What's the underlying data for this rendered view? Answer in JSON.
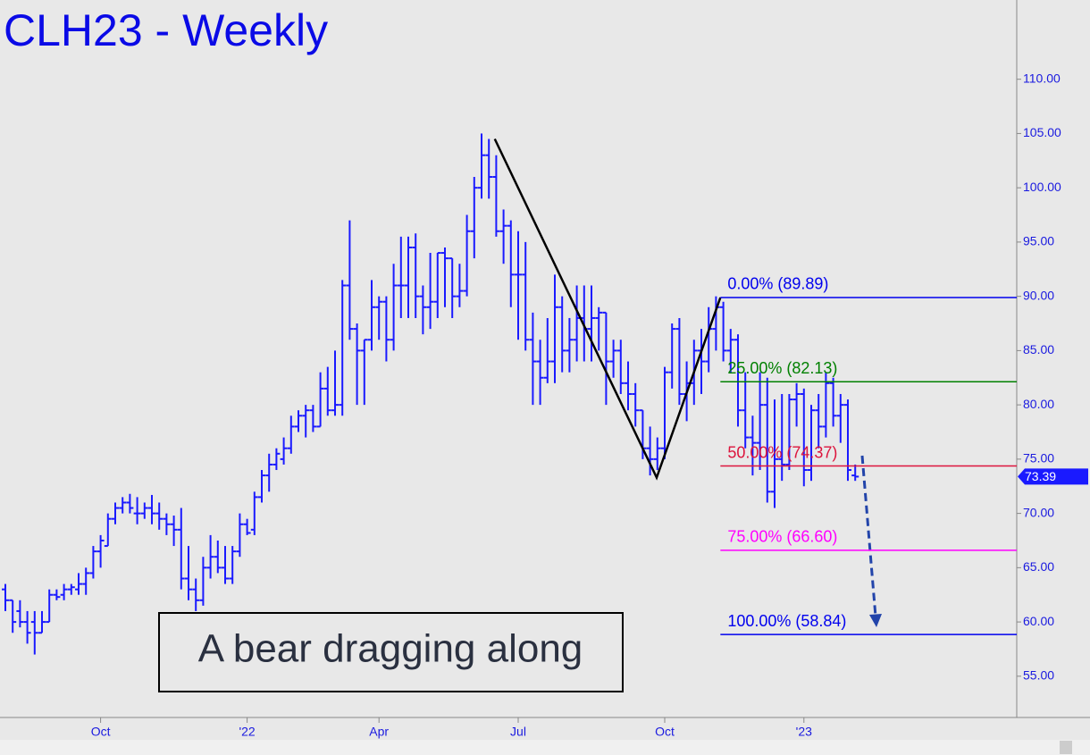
{
  "chart_data": {
    "type": "ohlc",
    "title": "CLH23 - Weekly",
    "annotation": "A bear dragging along",
    "color": "#1a1aff",
    "categories": [
      null,
      null,
      null,
      null,
      null,
      null,
      null,
      null,
      null,
      null,
      null,
      null,
      null,
      "Oct",
      null,
      null,
      null,
      null,
      null,
      null,
      null,
      null,
      null,
      null,
      null,
      null,
      null,
      null,
      null,
      null,
      null,
      null,
      null,
      "'22",
      null,
      null,
      null,
      null,
      null,
      null,
      null,
      null,
      null,
      null,
      null,
      null,
      null,
      null,
      null,
      null,
      null,
      "Apr",
      null,
      null,
      null,
      null,
      null,
      null,
      null,
      null,
      null,
      null,
      null,
      null,
      null,
      null,
      null,
      null,
      null,
      null,
      "Jul",
      null,
      null,
      null,
      null,
      null,
      null,
      null,
      null,
      null,
      null,
      null,
      null,
      null,
      null,
      null,
      null,
      null,
      null,
      null,
      "Oct",
      null,
      null,
      null,
      null,
      null,
      null,
      null,
      null,
      null,
      null,
      null,
      null,
      null,
      null,
      null,
      null,
      null,
      null,
      "'23",
      null,
      null,
      null,
      null,
      null,
      null,
      null
    ],
    "open": [
      63,
      62,
      61,
      60,
      60,
      59,
      60,
      62.5,
      62.5,
      63,
      63,
      63.5,
      64.5,
      66.5,
      67,
      69.5,
      70.5,
      71,
      70,
      70,
      70.5,
      70,
      69.5,
      69,
      68.5,
      64,
      63,
      62,
      65,
      66,
      65,
      64,
      66.5,
      69,
      68.5,
      71.5,
      73.5,
      74.5,
      75,
      76,
      78,
      79,
      79.5,
      78,
      81.5,
      79.5,
      80,
      91,
      87,
      85,
      86,
      89,
      89.5,
      86,
      91,
      91,
      94.5,
      90,
      89,
      89.5,
      94,
      93.5,
      90,
      90.5,
      96,
      100,
      103,
      101,
      96,
      96.5,
      92,
      92,
      86,
      84,
      82.5,
      84,
      89,
      85,
      86,
      88,
      87,
      88,
      88.5,
      84,
      85,
      82,
      81,
      79.5,
      76,
      75,
      76,
      83,
      87,
      81,
      82,
      85,
      84,
      87,
      89,
      85,
      86,
      79.5,
      77,
      76.5,
      80,
      72,
      75,
      74.5,
      80.5,
      81,
      74,
      79.5,
      78,
      82,
      79,
      80,
      73.5
    ],
    "high": [
      63.5,
      62,
      62,
      61,
      61,
      61,
      63,
      63,
      63.5,
      63.5,
      64.5,
      65,
      67,
      68,
      70,
      71,
      71.5,
      71.8,
      71.5,
      71,
      71.7,
      71,
      70,
      69.8,
      70.5,
      67,
      64,
      66,
      68,
      67.5,
      67,
      67,
      70,
      69.5,
      72,
      74,
      75.5,
      76,
      77,
      79,
      79.5,
      80,
      80,
      83,
      83.5,
      85,
      91.5,
      97,
      87.5,
      86,
      91.5,
      90,
      90,
      93,
      95.5,
      95.5,
      95.8,
      91,
      94,
      94,
      94.5,
      93.5,
      93,
      97.5,
      101,
      105,
      104.5,
      103,
      98,
      97,
      96,
      95,
      88.5,
      86,
      88,
      92,
      90,
      88,
      91,
      91,
      91,
      89,
      88.5,
      86,
      86,
      84,
      82,
      79.5,
      78,
      77,
      83.5,
      87.5,
      88,
      84,
      86,
      87,
      89,
      90,
      89.5,
      87,
      86.5,
      83,
      79,
      83,
      82.5,
      80.5,
      81,
      81,
      82,
      81.5,
      80,
      81,
      83,
      82.5,
      81,
      80.5,
      74.5
    ],
    "low": [
      61,
      59,
      59.5,
      58,
      57,
      59,
      60,
      62,
      62,
      62.5,
      62.5,
      62.5,
      64,
      65,
      67,
      69,
      70,
      70,
      69,
      69.5,
      69,
      68.5,
      68,
      67,
      63,
      62,
      61,
      61.5,
      64,
      64.5,
      63.5,
      63.5,
      66,
      68,
      68,
      71,
      72,
      74,
      74.5,
      75.5,
      77.5,
      77,
      77.5,
      78,
      79,
      79,
      79,
      86,
      80,
      80,
      85,
      86,
      84,
      85,
      88,
      88,
      88,
      86.5,
      87,
      88,
      89,
      88,
      89,
      90,
      93.5,
      99,
      99,
      95.5,
      93,
      89,
      86,
      85,
      80,
      80,
      82,
      82,
      83,
      83,
      84,
      84,
      84,
      85,
      80,
      82.5,
      81,
      79.5,
      78,
      75,
      73.5,
      74,
      75,
      81.5,
      80,
      78.5,
      80,
      81,
      83,
      85,
      84,
      83,
      78,
      76,
      73.5,
      74,
      71,
      70.5,
      73,
      74,
      78,
      72.5,
      73,
      76,
      77,
      78,
      76.5,
      73,
      73
    ],
    "close": [
      62,
      60,
      60,
      59,
      59,
      60,
      62.5,
      62.3,
      63,
      63.2,
      63.5,
      64.5,
      66.5,
      67.5,
      69.5,
      70.5,
      71,
      70.5,
      70,
      70.5,
      70,
      69.5,
      69,
      68.5,
      64,
      63,
      62,
      65,
      66,
      65,
      64,
      66.5,
      69,
      68.2,
      71.5,
      73.5,
      74.5,
      75.5,
      76,
      78,
      79,
      79.5,
      78,
      81.5,
      79.5,
      80,
      91,
      87,
      85,
      86,
      89,
      89.5,
      86,
      91,
      91,
      94.5,
      90,
      89,
      89.5,
      94,
      93.5,
      90,
      90.5,
      96,
      100,
      103,
      101,
      96,
      96.5,
      92,
      92,
      86,
      84,
      82.5,
      84,
      89,
      85,
      86,
      88,
      87,
      88,
      88.5,
      84,
      85,
      82,
      81,
      79.5,
      76,
      75,
      76,
      83,
      87,
      81,
      82,
      85,
      84,
      87,
      89,
      85,
      86,
      79.5,
      77,
      76.5,
      80,
      72,
      75,
      74.5,
      80.5,
      81,
      74,
      79.5,
      78,
      82,
      79,
      80,
      74,
      73.39
    ],
    "zigzag": {
      "x": [
        66.8,
        88.9,
        97.6
      ],
      "values": [
        104.5,
        73.3,
        89.89
      ],
      "color": "#000000"
    },
    "levels": [
      {
        "label": "0.00% (89.89)",
        "value": 89.89,
        "color": "#0000ee"
      },
      {
        "label": "25.00% (82.13)",
        "value": 82.13,
        "color": "#008000"
      },
      {
        "label": "50.00% (74.37)",
        "value": 74.37,
        "color": "#dc143c"
      },
      {
        "label": "75.00% (66.60)",
        "value": 66.6,
        "color": "#ff00ff"
      },
      {
        "label": "100.00% (58.84)",
        "value": 58.84,
        "color": "#0000ee"
      }
    ],
    "ylim": [
      51.2,
      117.3
    ],
    "yticks": [
      {
        "value": 55,
        "label": "55.00"
      },
      {
        "value": 60,
        "label": "60.00"
      },
      {
        "value": 65,
        "label": "65.00"
      },
      {
        "value": 70,
        "label": "70.00"
      },
      {
        "value": 75,
        "label": "75.00"
      },
      {
        "value": 80,
        "label": "80.00"
      },
      {
        "value": 85,
        "label": "85.00"
      },
      {
        "value": 90,
        "label": "90.00"
      },
      {
        "value": 95,
        "label": "95.00"
      },
      {
        "value": 100,
        "label": "100.00"
      },
      {
        "value": 105,
        "label": "105.00"
      },
      {
        "value": 110,
        "label": "110.00"
      }
    ]
  }
}
